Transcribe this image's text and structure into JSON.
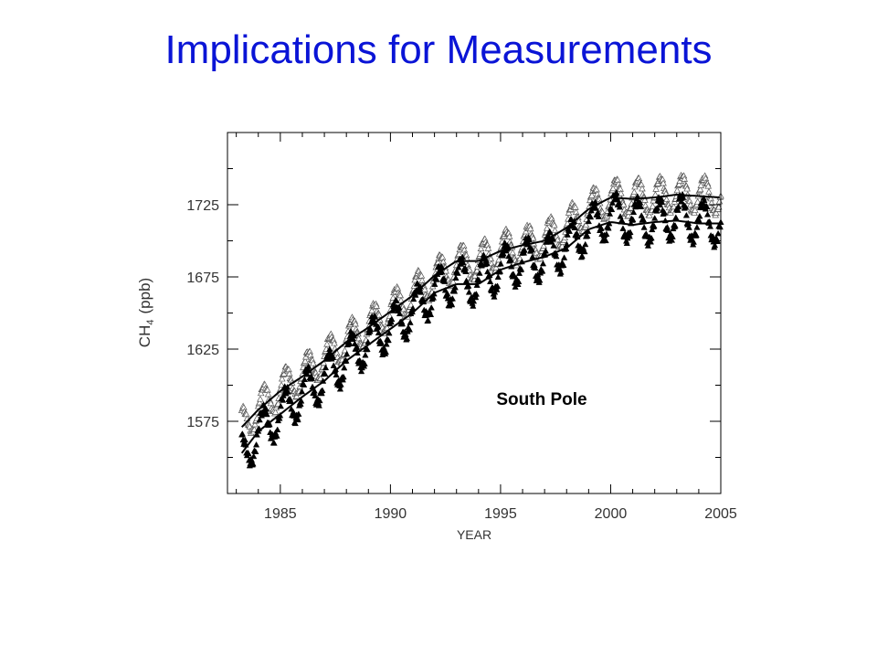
{
  "slide": {
    "title": "Implications for Measurements"
  },
  "colors": {
    "title": "#0a14d6",
    "marks": "#000000",
    "open_marker": "#555555"
  },
  "chart_data": {
    "type": "scatter",
    "title": "",
    "xlabel": "YEAR",
    "ylabel_main": "CH",
    "ylabel_sub": "4",
    "ylabel_unit": "(ppb)",
    "xlim": [
      1982.6,
      2005.0
    ],
    "ylim": [
      1525,
      1775
    ],
    "xticks": [
      1985,
      1990,
      1995,
      2000,
      2005
    ],
    "yticks": [
      1575,
      1625,
      1675,
      1725
    ],
    "grid": false,
    "annotation": "South Pole",
    "series": [
      {
        "marker": "open-triangle",
        "x": [
          1983.25,
          1984,
          1985,
          1986,
          1987,
          1988,
          1989,
          1990,
          1991,
          1992,
          1993,
          1994,
          1995,
          1996,
          1997,
          1998,
          1999,
          2000,
          2001,
          2002,
          2003,
          2004,
          2005
        ],
        "y": [
          1572,
          1584,
          1597,
          1608,
          1619,
          1631,
          1641,
          1652,
          1663,
          1675,
          1684,
          1686,
          1694,
          1697,
          1701,
          1710,
          1722,
          1730,
          1730,
          1731,
          1733,
          1732,
          1731
        ],
        "seasonal_amplitude": 12
      },
      {
        "marker": "filled-triangle",
        "x": [
          1983.25,
          1984,
          1985,
          1986,
          1987,
          1988,
          1989,
          1990,
          1991,
          1992,
          1993,
          1994,
          1995,
          1996,
          1997,
          1998,
          1999,
          2000,
          2001,
          2002,
          2003,
          2004,
          2005
        ],
        "y": [
          1550,
          1567,
          1580,
          1594,
          1605,
          1618,
          1630,
          1640,
          1651,
          1665,
          1673,
          1671,
          1681,
          1686,
          1688,
          1696,
          1709,
          1718,
          1714,
          1713,
          1717,
          1713,
          1712
        ],
        "seasonal_amplitude": 14
      }
    ],
    "smoothed_curves": [
      {
        "x": [
          1983.25,
          1984,
          1985,
          1986,
          1987,
          1988,
          1989,
          1990,
          1991,
          1992,
          1993,
          1994,
          1995,
          1996,
          1997,
          1998,
          1999,
          2000,
          2001,
          2002,
          2003,
          2004,
          2005
        ],
        "y": [
          1571,
          1583,
          1596,
          1606,
          1617,
          1630,
          1640,
          1651,
          1662,
          1676,
          1686,
          1686,
          1693,
          1697,
          1700,
          1709,
          1722,
          1730,
          1729,
          1730,
          1732,
          1731,
          1730
        ]
      },
      {
        "x": [
          1983.25,
          1984,
          1985,
          1986,
          1987,
          1988,
          1989,
          1990,
          1991,
          1992,
          1993,
          1994,
          1995,
          1996,
          1997,
          1998,
          1999,
          2000,
          2001,
          2002,
          2003,
          2004,
          2005
        ],
        "y": [
          1553,
          1568,
          1580,
          1592,
          1603,
          1617,
          1628,
          1639,
          1650,
          1664,
          1670,
          1670,
          1680,
          1685,
          1689,
          1695,
          1708,
          1713,
          1711,
          1713,
          1714,
          1712,
          1712
        ]
      }
    ]
  }
}
